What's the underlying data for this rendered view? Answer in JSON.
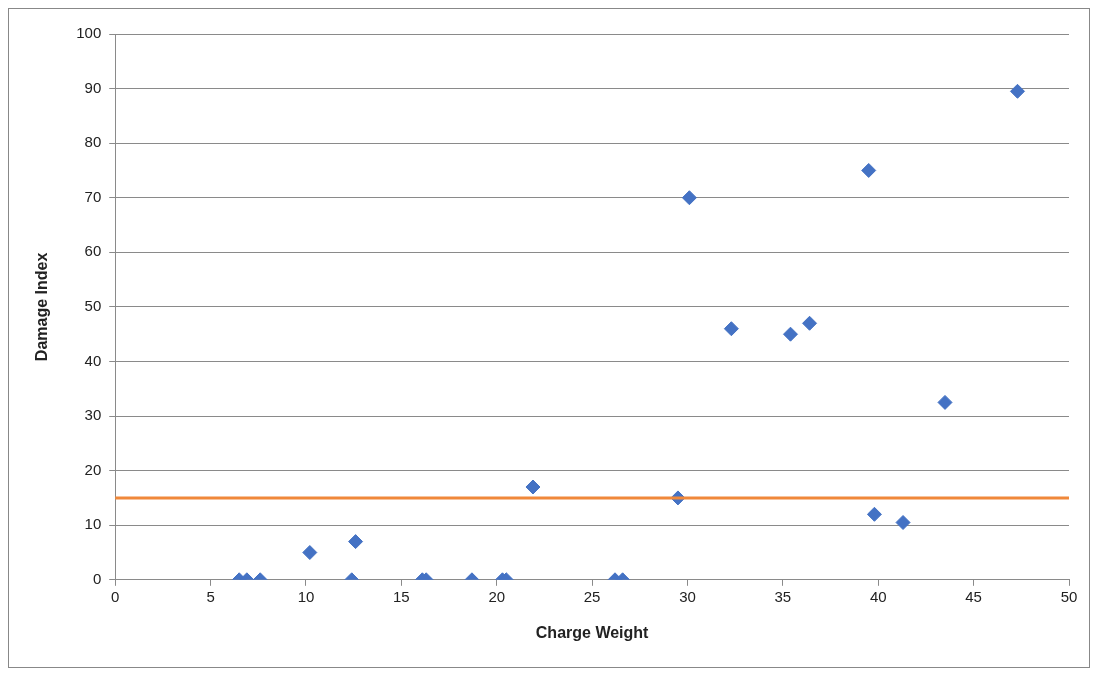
{
  "chart_data": {
    "type": "scatter",
    "xlabel": "Charge Weight",
    "ylabel": "Damage Index",
    "xlim": [
      0,
      50
    ],
    "xticks": [
      0,
      5,
      10,
      15,
      20,
      25,
      30,
      35,
      40,
      45,
      50
    ],
    "ylim": [
      0,
      100
    ],
    "yticks": [
      0,
      10,
      20,
      30,
      40,
      50,
      60,
      70,
      80,
      90,
      100
    ],
    "grid": "y",
    "legend": false,
    "marker": "diamond",
    "series": [
      {
        "color": "#4472c4",
        "x": [
          6.5,
          6.9,
          7.6,
          10.2,
          12.4,
          12.6,
          16.1,
          16.3,
          18.7,
          20.3,
          20.5,
          21.9,
          26.2,
          26.6,
          29.5,
          30.1,
          32.3,
          35.4,
          36.4,
          39.5,
          39.8,
          41.3,
          43.5,
          47.3
        ],
        "values": [
          0,
          0,
          0,
          5,
          0,
          7,
          0,
          0,
          0,
          0,
          0,
          17,
          0,
          0,
          15,
          70,
          46,
          45,
          47,
          75,
          12,
          10.5,
          32.5,
          89.5
        ]
      }
    ],
    "ref_lines": [
      {
        "axis": "y",
        "value": 15,
        "color": "#f0883a"
      }
    ]
  }
}
